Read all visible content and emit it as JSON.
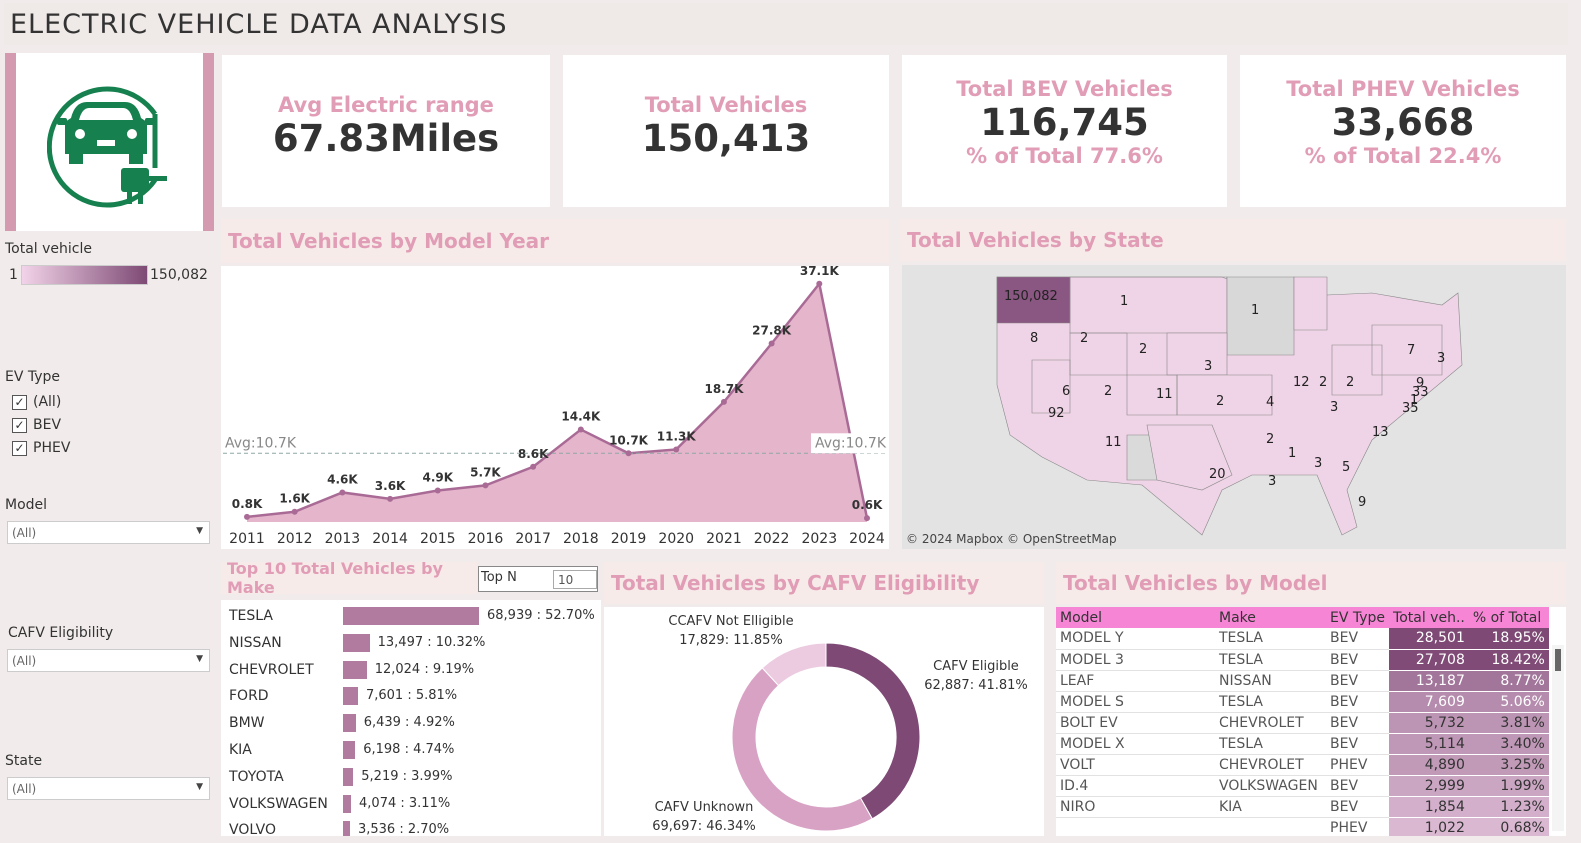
{
  "title": "ELECTRIC VEHICLE DATA ANALYSIS",
  "colors": {
    "accent": "#e19cb6",
    "dark": "#7e4a75",
    "light": "#efd0e3",
    "header_pink": "#f785d6"
  },
  "logo_icon": "ev-car-plug-icon",
  "kpis": {
    "avg_range": {
      "label": "Avg Electric range",
      "value": "67.83Miles"
    },
    "total": {
      "label": "Total Vehicles",
      "value": "150,413"
    },
    "bev": {
      "label": "Total BEV Vehicles",
      "value": "116,745",
      "pct": "% of Total  77.6%"
    },
    "phev": {
      "label": "Total PHEV Vehicles",
      "value": "33,668",
      "pct": "% of Total 22.4%"
    }
  },
  "filters": {
    "total_vehicle": {
      "label": "Total vehicle",
      "min": "1",
      "max": "150,082"
    },
    "ev_type": {
      "label": "EV Type",
      "options": [
        "(All)",
        "BEV",
        "PHEV"
      ]
    },
    "model": {
      "label": "Model",
      "value": "(All)"
    },
    "cafv": {
      "label": "CAFV  Eligibility",
      "value": "(All)"
    },
    "state": {
      "label": "State",
      "value": "(All)"
    }
  },
  "sections": {
    "by_year": "Total Vehicles by Model Year",
    "by_state": "Total Vehicles by State",
    "by_make": "Top 10 Total Vehicles by Make",
    "by_cafv": "Total Vehicles by CAFV Eligibility",
    "by_model": "Total Vehicles by Model"
  },
  "top_n": {
    "label": "Top N",
    "value": "10"
  },
  "map_attribution": "© 2024 Mapbox © OpenStreetMap",
  "map_labels": [
    "150,082",
    "1",
    "8",
    "2",
    "2",
    "1",
    "3",
    "6",
    "2",
    "11",
    "2",
    "4",
    "12",
    "2",
    "2",
    "7",
    "3",
    "9",
    "33",
    "35",
    "1",
    "3",
    "92",
    "11",
    "13",
    "2",
    "1",
    "3",
    "5",
    "20",
    "3",
    "9"
  ],
  "chart_data": [
    {
      "type": "area",
      "title": "Total Vehicles by Model Year",
      "categories": [
        "2011",
        "2012",
        "2013",
        "2014",
        "2015",
        "2016",
        "2017",
        "2018",
        "2019",
        "2020",
        "2021",
        "2022",
        "2023",
        "2024"
      ],
      "values": [
        0.8,
        1.6,
        4.6,
        3.6,
        4.9,
        5.7,
        8.6,
        14.4,
        10.7,
        11.3,
        18.7,
        27.8,
        37.1,
        0.6
      ],
      "labels": [
        "0.8K",
        "1.6K",
        "4.6K",
        "3.6K",
        "4.9K",
        "5.7K",
        "8.6K",
        "14.4K",
        "10.7K",
        "11.3K",
        "18.7K",
        "27.8K",
        "37.1K",
        "0.6K"
      ],
      "ylim": [
        0,
        38
      ],
      "reference_line": {
        "value": 10.7,
        "label": "Avg:10.7K"
      }
    },
    {
      "type": "bar",
      "title": "Top 10 Total Vehicles by Make",
      "categories": [
        "TESLA",
        "NISSAN",
        "CHEVROLET",
        "FORD",
        "BMW",
        "KIA",
        "TOYOTA",
        "VOLKSWAGEN",
        "VOLVO"
      ],
      "values": [
        68939,
        13497,
        12024,
        7601,
        6439,
        6198,
        5219,
        4074,
        3536
      ],
      "labels": [
        "68,939 : 52.70%",
        "13,497 : 10.32%",
        "12,024 : 9.19%",
        "7,601 : 5.81%",
        "6,439 : 4.92%",
        "6,198 : 4.74%",
        "5,219 : 3.99%",
        "4,074 : 3.11%",
        "3,536 : 2.70%"
      ]
    },
    {
      "type": "pie",
      "title": "Total Vehicles by CAFV Eligibility",
      "slices": [
        {
          "name": "CAFV Eligible",
          "value": 62887,
          "label": "62,887: 41.81%",
          "color": "#7e4a75"
        },
        {
          "name": "CAFV Unknown",
          "value": 69697,
          "label": "69,697: 46.34%",
          "color": "#d8a2c5"
        },
        {
          "name": "CCAFV Not Elligible",
          "value": 17829,
          "label": "17,829: 11.85%",
          "color": "#eccbe0"
        }
      ]
    },
    {
      "type": "table",
      "title": "Total Vehicles by Model",
      "columns": [
        "Model",
        "Make",
        "EV Type",
        "Total veh..",
        "% of Total"
      ],
      "rows": [
        [
          "MODEL Y",
          "TESLA",
          "BEV",
          "28,501",
          "18.95%"
        ],
        [
          "MODEL 3",
          "TESLA",
          "BEV",
          "27,708",
          "18.42%"
        ],
        [
          "LEAF",
          "NISSAN",
          "BEV",
          "13,187",
          "8.77%"
        ],
        [
          "MODEL S",
          "TESLA",
          "BEV",
          "7,609",
          "5.06%"
        ],
        [
          "BOLT EV",
          "CHEVROLET",
          "BEV",
          "5,732",
          "3.81%"
        ],
        [
          "MODEL X",
          "TESLA",
          "BEV",
          "5,114",
          "3.40%"
        ],
        [
          "VOLT",
          "CHEVROLET",
          "PHEV",
          "4,890",
          "3.25%"
        ],
        [
          "ID.4",
          "VOLKSWAGEN",
          "BEV",
          "2,999",
          "1.99%"
        ],
        [
          "NIRO",
          "KIA",
          "BEV",
          "1,854",
          "1.23%"
        ],
        [
          "",
          "",
          "PHEV",
          "1,022",
          "0.68%"
        ]
      ]
    }
  ]
}
